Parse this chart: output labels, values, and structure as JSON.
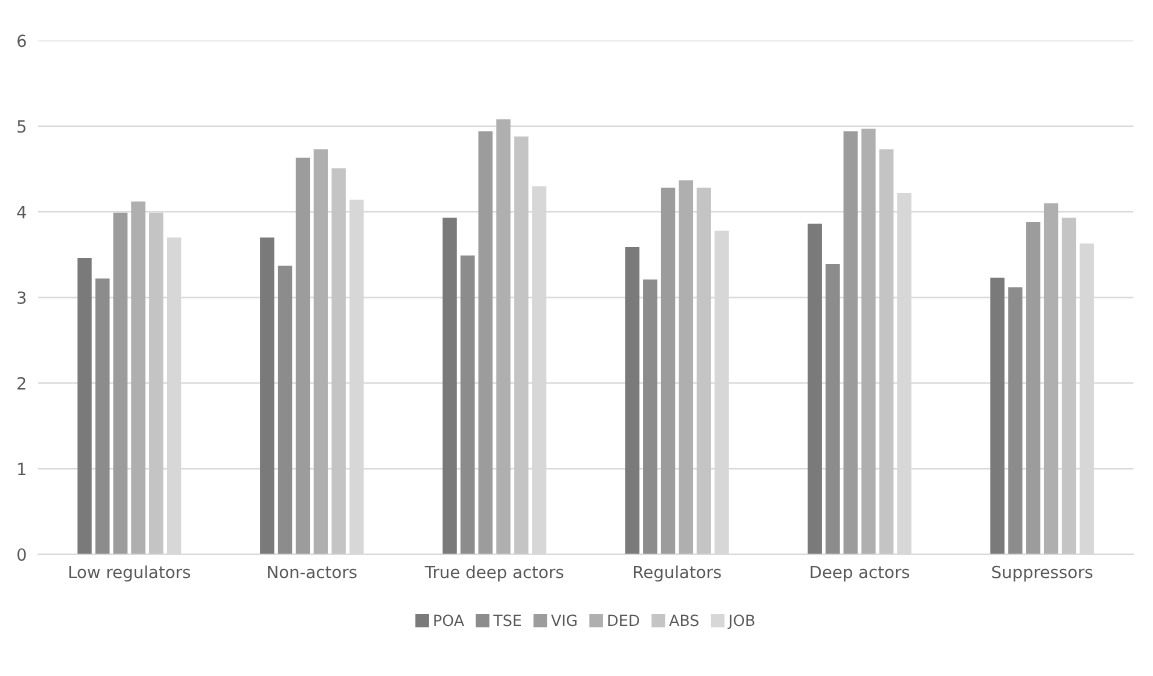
{
  "chart_data": {
    "type": "bar",
    "categories": [
      "Low regulators",
      "Non-actors",
      "True deep actors",
      "Regulators",
      "Deep actors",
      "Suppressors"
    ],
    "series": [
      {
        "name": "POA",
        "color": "#7a7a7a",
        "values": [
          3.46,
          3.7,
          3.93,
          3.59,
          3.86,
          3.23
        ]
      },
      {
        "name": "TSE",
        "color": "#8c8c8c",
        "values": [
          3.22,
          3.37,
          3.49,
          3.21,
          3.39,
          3.12
        ]
      },
      {
        "name": "VIG",
        "color": "#9c9c9c",
        "values": [
          3.99,
          4.63,
          4.94,
          4.28,
          4.94,
          3.88
        ]
      },
      {
        "name": "DED",
        "color": "#afafaf",
        "values": [
          4.12,
          4.73,
          5.08,
          4.37,
          4.97,
          4.1
        ]
      },
      {
        "name": "ABS",
        "color": "#c4c4c4",
        "values": [
          3.99,
          4.51,
          4.88,
          4.28,
          4.73,
          3.93
        ]
      },
      {
        "name": "JOB",
        "color": "#d7d7d7",
        "values": [
          3.7,
          4.14,
          4.3,
          3.78,
          4.22,
          3.63
        ]
      }
    ],
    "ylim": [
      0,
      6
    ],
    "yticks": [
      0,
      1,
      2,
      3,
      4,
      5,
      6
    ],
    "grid": "y",
    "legend": "bottom"
  }
}
